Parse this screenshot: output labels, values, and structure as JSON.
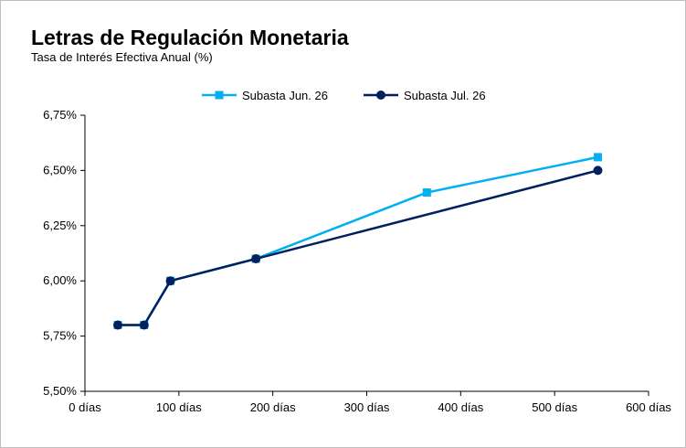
{
  "chart_data": {
    "type": "line",
    "title": "Letras de Regulación Monetaria",
    "subtitle": "Tasa de Interés Efectiva Anual (%)",
    "xlabel": "",
    "ylabel": "",
    "xlim": [
      0,
      600
    ],
    "ylim": [
      5.5,
      6.75
    ],
    "x_ticks": [
      0,
      100,
      200,
      300,
      400,
      500,
      600
    ],
    "x_tick_labels": [
      "0 días",
      "100 días",
      "200 días",
      "300 días",
      "400 días",
      "500 días",
      "600 días"
    ],
    "y_ticks": [
      5.5,
      5.75,
      6.0,
      6.25,
      6.5,
      6.75
    ],
    "y_tick_labels": [
      "5,50%",
      "5,75%",
      "6,00%",
      "6,25%",
      "6,50%",
      "6,75%"
    ],
    "grid": false,
    "legend_position": "top-center",
    "series": [
      {
        "name": "Subasta Jun. 26",
        "color": "#00b0f0",
        "marker": "square",
        "x": [
          35,
          63,
          91,
          182,
          364,
          546
        ],
        "y": [
          5.8,
          5.8,
          6.0,
          6.1,
          6.4,
          6.56
        ]
      },
      {
        "name": "Subasta Jul. 26",
        "color": "#002060",
        "marker": "circle",
        "x": [
          35,
          63,
          91,
          182,
          546
        ],
        "y": [
          5.8,
          5.8,
          6.0,
          6.1,
          6.5
        ]
      }
    ]
  }
}
